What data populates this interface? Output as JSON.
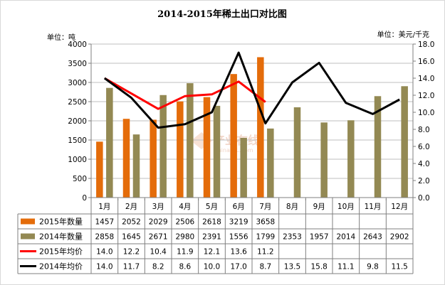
{
  "chart_data": {
    "type": "bar+line",
    "title": "2014-2015年稀土出口对比图",
    "left_unit": "单位：吨",
    "right_unit": "单位：美元/千克",
    "categories": [
      "1月",
      "2月",
      "3月",
      "4月",
      "5月",
      "6月",
      "7月",
      "8月",
      "9月",
      "10月",
      "11月",
      "12月"
    ],
    "y_left": {
      "min": 0,
      "max": 4000,
      "step": 500,
      "ticks": [
        "0",
        "500",
        "1000",
        "1500",
        "2000",
        "2500",
        "3000",
        "3500",
        "4000"
      ]
    },
    "y_right": {
      "min": 0,
      "max": 18,
      "step": 2,
      "ticks": [
        "0.0",
        "2.0",
        "4.0",
        "6.0",
        "8.0",
        "10.0",
        "12.0",
        "14.0",
        "16.0",
        "18.0"
      ]
    },
    "grid": true,
    "legend_position": "bottom-table",
    "series": [
      {
        "name": "2015年数量",
        "type": "bar",
        "axis": "left",
        "color": "#e46c0a",
        "values": [
          1457,
          2052,
          2029,
          2506,
          2618,
          3219,
          3658,
          null,
          null,
          null,
          null,
          null
        ],
        "labels": [
          "1457",
          "2052",
          "2029",
          "2506",
          "2618",
          "3219",
          "3658",
          "",
          "",
          "",
          "",
          ""
        ]
      },
      {
        "name": "2014年数量",
        "type": "bar",
        "axis": "left",
        "color": "#938953",
        "values": [
          2858,
          1645,
          2671,
          2980,
          2391,
          1556,
          1799,
          2353,
          1957,
          2014,
          2643,
          2902
        ],
        "labels": [
          "2858",
          "1645",
          "2671",
          "2980",
          "2391",
          "1556",
          "1799",
          "2353",
          "1957",
          "2014",
          "2643",
          "2902"
        ]
      },
      {
        "name": "2015年均价",
        "type": "line",
        "axis": "right",
        "color": "#ff0000",
        "values": [
          14.0,
          12.2,
          10.4,
          11.9,
          12.1,
          13.6,
          11.2,
          null,
          null,
          null,
          null,
          null
        ],
        "labels": [
          "14.0",
          "12.2",
          "10.4",
          "11.9",
          "12.1",
          "13.6",
          "11.2",
          "",
          "",
          "",
          "",
          ""
        ]
      },
      {
        "name": "2014年均价",
        "type": "line",
        "axis": "right",
        "color": "#000000",
        "values": [
          14.0,
          11.7,
          8.2,
          8.6,
          10.0,
          17.0,
          8.7,
          13.5,
          15.8,
          11.1,
          9.8,
          11.5
        ],
        "labels": [
          "14.0",
          "11.7",
          "8.2",
          "8.6",
          "10.0",
          "17.0",
          "8.7",
          "13.5",
          "15.8",
          "11.1",
          "9.8",
          "11.5"
        ]
      }
    ]
  },
  "watermark": {
    "text": "产业在线",
    "sub": "ChinaIOL.com"
  },
  "colors": {
    "grid": "#bfbfbf",
    "border": "#7f7f7f",
    "frame": "#c0c0c0"
  }
}
